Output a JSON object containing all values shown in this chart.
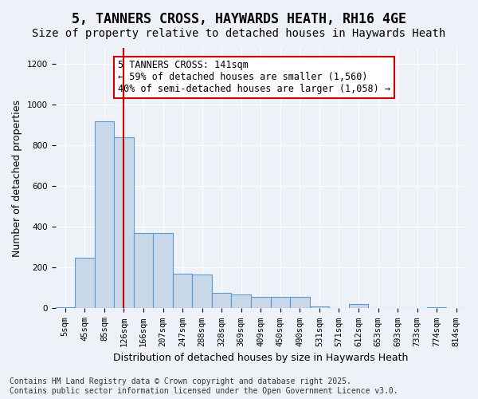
{
  "title": "5, TANNERS CROSS, HAYWARDS HEATH, RH16 4GE",
  "subtitle": "Size of property relative to detached houses in Haywards Heath",
  "xlabel": "Distribution of detached houses by size in Haywards Heath",
  "ylabel": "Number of detached properties",
  "bar_color": "#c8d8e8",
  "bar_edge_color": "#5b9bd5",
  "vline_color": "#cc0000",
  "vline_x": 3,
  "categories": [
    "5sqm",
    "45sqm",
    "85sqm",
    "126sqm",
    "166sqm",
    "207sqm",
    "247sqm",
    "288sqm",
    "328sqm",
    "369sqm",
    "409sqm",
    "450sqm",
    "490sqm",
    "531sqm",
    "571sqm",
    "612sqm",
    "653sqm",
    "693sqm",
    "733sqm",
    "774sqm",
    "814sqm"
  ],
  "values": [
    5,
    248,
    920,
    840,
    370,
    370,
    170,
    165,
    75,
    70,
    55,
    55,
    55,
    10,
    0,
    20,
    0,
    0,
    0,
    5,
    0
  ],
  "ylim": [
    0,
    1280
  ],
  "yticks": [
    0,
    200,
    400,
    600,
    800,
    1000,
    1200
  ],
  "annotation_text": "5 TANNERS CROSS: 141sqm\n← 59% of detached houses are smaller (1,560)\n40% of semi-detached houses are larger (1,058) →",
  "annotation_box_color": "#ffffff",
  "annotation_box_edge": "#cc0000",
  "footer_text": "Contains HM Land Registry data © Crown copyright and database right 2025.\nContains public sector information licensed under the Open Government Licence v3.0.",
  "background_color": "#eef2f8",
  "grid_color": "#ffffff",
  "title_fontsize": 12,
  "subtitle_fontsize": 10,
  "axis_label_fontsize": 9,
  "tick_fontsize": 7.5,
  "annotation_fontsize": 8.5,
  "footer_fontsize": 7
}
